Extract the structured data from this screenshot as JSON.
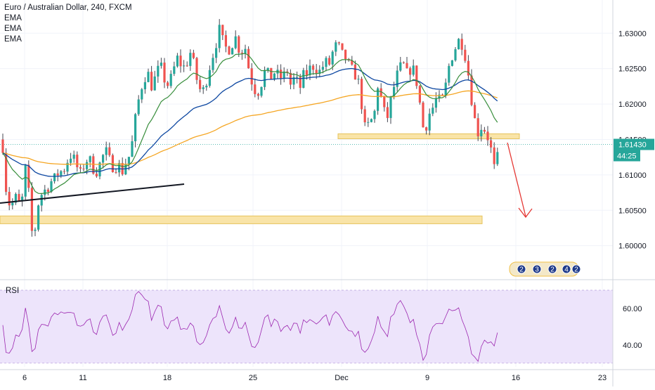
{
  "chart_data": [
    {
      "type": "candlestick",
      "title": "Euro / Australian Dollar, 240, FXCM",
      "indicators": [
        "EMA",
        "EMA",
        "EMA"
      ],
      "x_tick_labels": [
        "6",
        "11",
        "18",
        "25",
        "Dec",
        "9",
        "16",
        "23"
      ],
      "y_tick_labels": [
        "1.63000",
        "1.62500",
        "1.62000",
        "1.61500",
        "1.61000",
        "1.60500",
        "1.60000"
      ],
      "ylim": [
        1.5955,
        1.6335
      ],
      "last_price": "1.61430",
      "countdown": "44:25",
      "last_price_color": "#26a69a",
      "colors": {
        "up": "#26a69a",
        "down": "#ef5350",
        "ema_fast": "#388e3c",
        "ema_mid": "#0d47a1",
        "ema_slow": "#f5a623",
        "zone": "#f9e4a8",
        "arrow": "#e53935"
      },
      "annotation_badges": [
        "2",
        "3",
        "2",
        "4",
        "2"
      ],
      "series_summary": {
        "start_close": 1.615,
        "low_close": 1.6,
        "high_close": 1.6305,
        "end_close": 1.6143
      },
      "support_zones": [
        {
          "from": 1.6031,
          "to": 1.6042
        },
        {
          "from": 1.6151,
          "to": 1.6158
        }
      ]
    },
    {
      "type": "line",
      "title": "RSI",
      "y_tick_labels": [
        "60.00",
        "40.00"
      ],
      "ylim": [
        28,
        75
      ],
      "band": [
        30,
        70
      ],
      "band_color": "#ede4fb",
      "line_color": "#9c27b0"
    }
  ]
}
